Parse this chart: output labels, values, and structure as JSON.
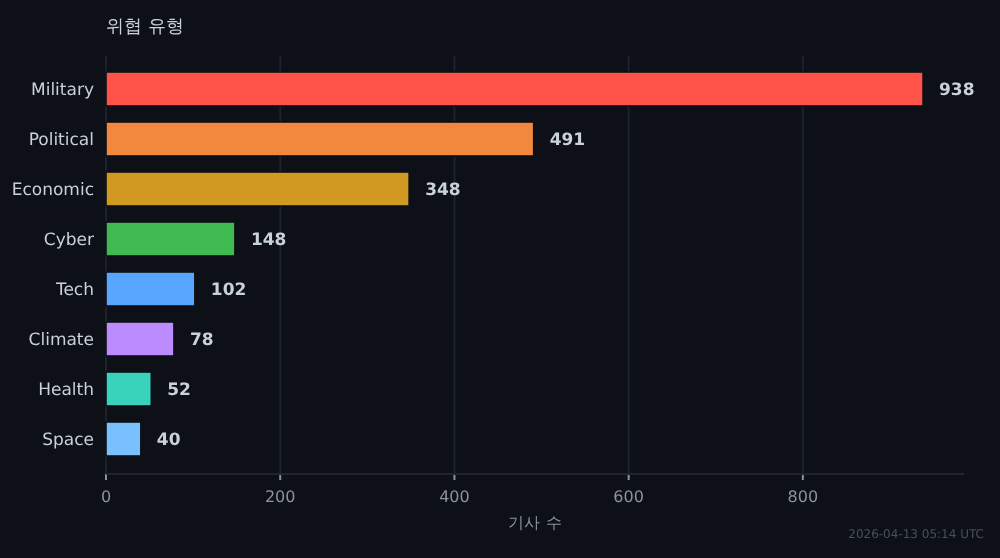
{
  "chart_data": {
    "type": "bar",
    "orientation": "horizontal",
    "title": "위협 유형",
    "xlabel": "기사 수",
    "categories": [
      "Military",
      "Political",
      "Economic",
      "Cyber",
      "Tech",
      "Climate",
      "Health",
      "Space"
    ],
    "values": [
      938,
      491,
      348,
      148,
      102,
      78,
      52,
      40
    ],
    "colors": [
      "#ff5249",
      "#f0883e",
      "#d29922",
      "#3fb950",
      "#58a6ff",
      "#bc8cff",
      "#39d3bb",
      "#79c0ff"
    ],
    "xlim": [
      0,
      985
    ],
    "xticks": [
      0,
      200,
      400,
      600,
      800
    ],
    "grid": "x",
    "data_labels": true,
    "annotations": [
      "2026-04-13 05:14 UTC"
    ]
  }
}
